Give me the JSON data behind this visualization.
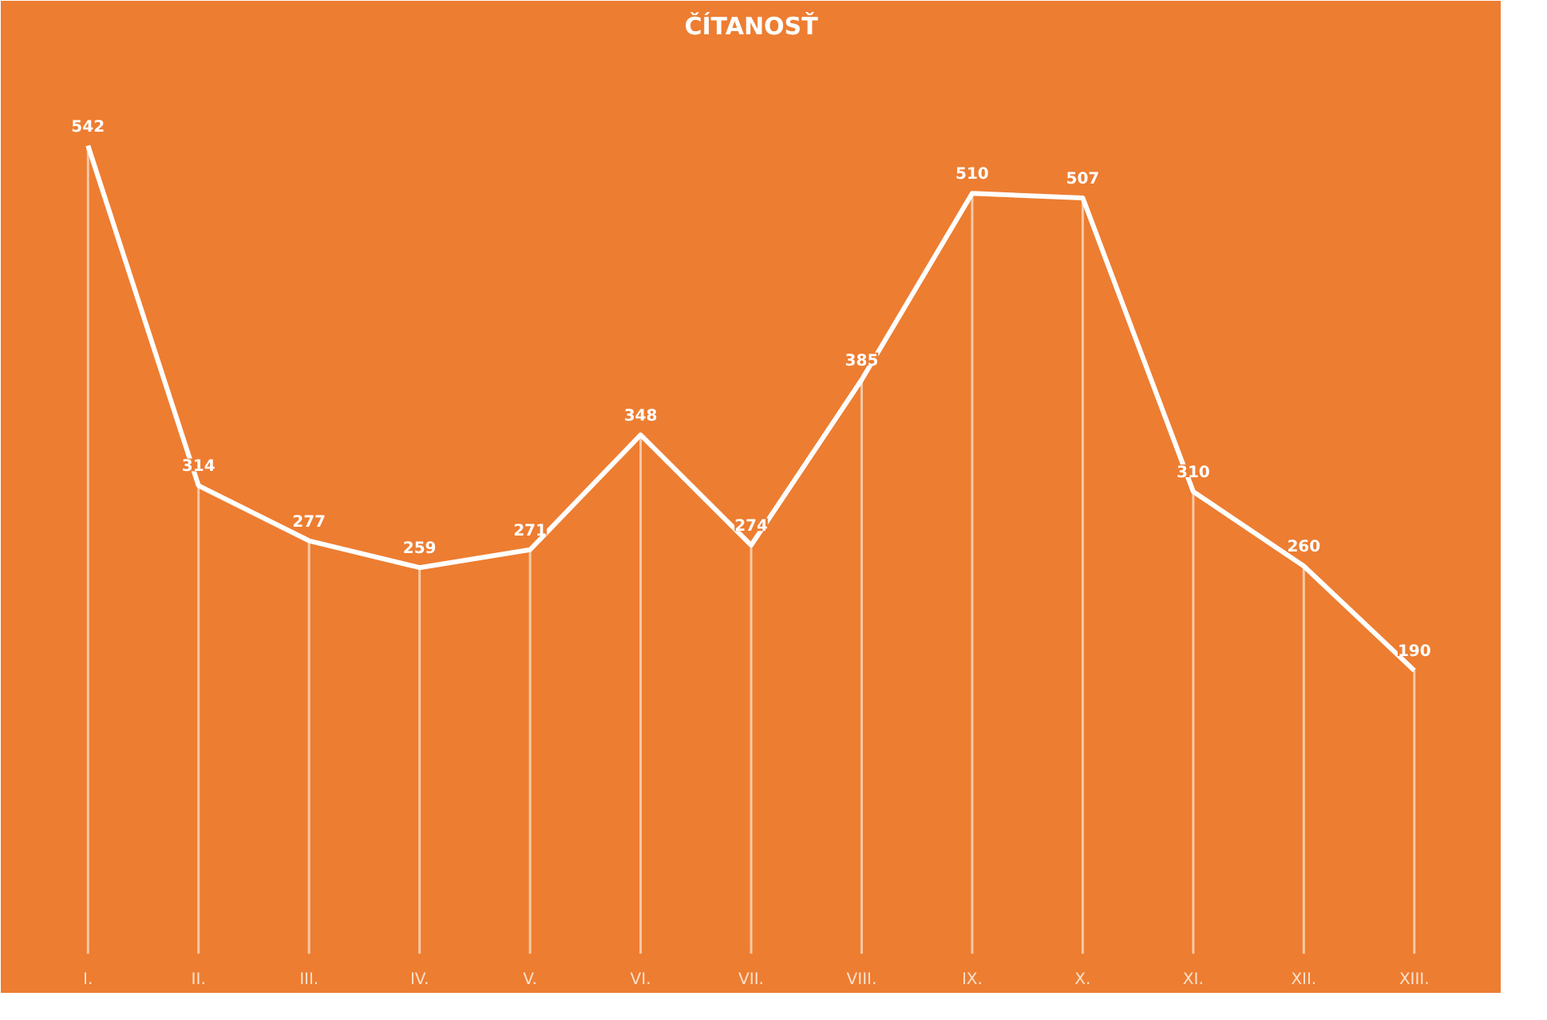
{
  "chart_data": {
    "type": "line",
    "title": "ČÍTANOSŤ",
    "categories": [
      "I.",
      "II.",
      "III.",
      "IV.",
      "V.",
      "VI.",
      "VII.",
      "VIII.",
      "IX.",
      "X.",
      "XI.",
      "XII.",
      "XIII."
    ],
    "series": [
      {
        "color": "#ffffff",
        "values": [
          542,
          314,
          277,
          259,
          271,
          348,
          274,
          385,
          510,
          507,
          310,
          260,
          190
        ]
      }
    ],
    "tick_labels": "x",
    "grid": "x",
    "data_labels": true
  }
}
